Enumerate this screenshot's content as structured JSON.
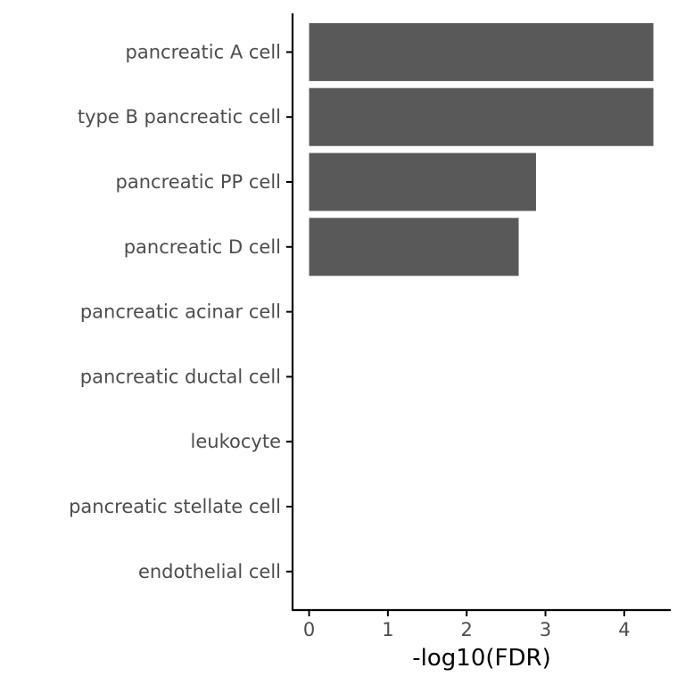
{
  "chart_data": {
    "type": "bar",
    "orientation": "horizontal",
    "categories": [
      "pancreatic A cell",
      "type B pancreatic cell",
      "pancreatic PP cell",
      "pancreatic D cell",
      "pancreatic acinar cell",
      "pancreatic ductal cell",
      "leukocyte",
      "pancreatic stellate cell",
      "endothelial cell"
    ],
    "values": [
      4.37,
      4.37,
      2.88,
      2.66,
      0,
      0,
      0,
      0,
      0
    ],
    "xlabel": "-log10(FDR)",
    "ylabel": "",
    "xlim": [
      -0.21,
      4.59
    ],
    "xticks": [
      0,
      1,
      2,
      3,
      4
    ],
    "grid": false,
    "legend": "none",
    "bar_color": "#595959",
    "axis_color": "#000000",
    "label_color": "#4d4d4d"
  }
}
